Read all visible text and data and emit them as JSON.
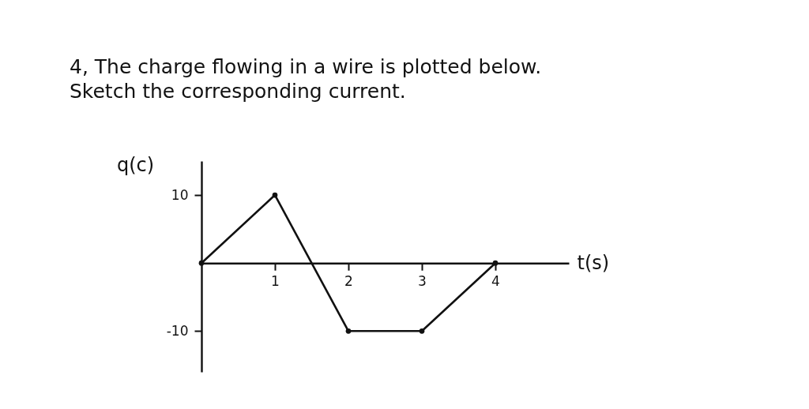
{
  "chart_data": {
    "type": "line",
    "title": "4, The charge flowing in a wire is plotted below.",
    "subtitle": "Sketch the corresponding current.",
    "xlabel": "t(s)",
    "ylabel": "q(c)",
    "x": [
      0,
      1,
      2,
      3,
      4
    ],
    "values": [
      0,
      10,
      -10,
      -10,
      0
    ],
    "color": "#111111",
    "xlim": [
      0,
      5
    ],
    "ylim": [
      -16,
      15
    ],
    "xticks": [
      1,
      2,
      3,
      4
    ],
    "yticks": [
      -10,
      10
    ],
    "grid": false,
    "marker": "circle",
    "line_style": "solid"
  }
}
